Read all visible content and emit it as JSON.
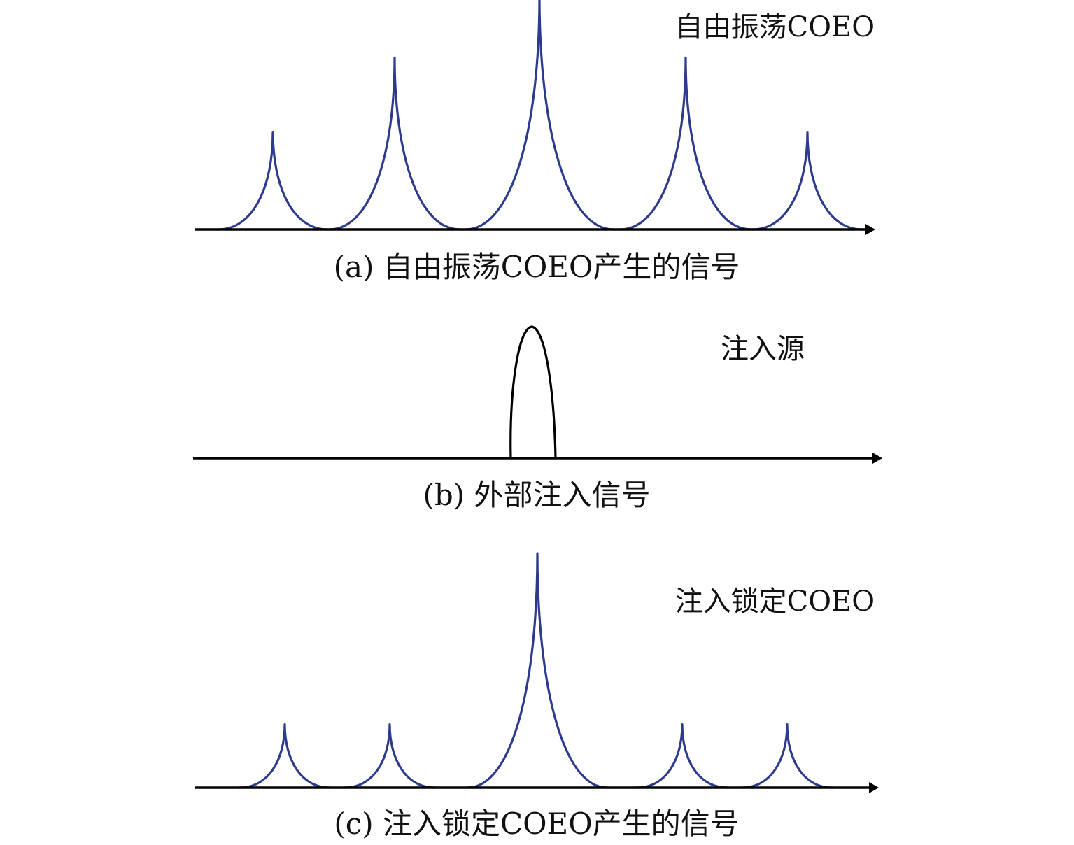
{
  "colors": {
    "coeo_line": "#2e3a8c",
    "injection_line": "#000000",
    "axis": "#000000",
    "text": "#111111"
  },
  "panels": [
    {
      "id": "a",
      "curve_label": "自由振荡COEO",
      "caption": "(a) 自由振荡COEO产生的信号",
      "relative_heights": [
        0.42,
        0.74,
        1.0,
        0.74,
        0.42
      ]
    },
    {
      "id": "b",
      "curve_label": "注入源",
      "caption": "(b) 外部注入信号",
      "relative_heights": [
        1.0
      ]
    },
    {
      "id": "c",
      "curve_label": "注入锁定COEO",
      "caption": "(c) 注入锁定COEO产生的信号",
      "relative_heights": [
        0.27,
        0.27,
        1.0,
        0.27,
        0.27
      ]
    }
  ]
}
